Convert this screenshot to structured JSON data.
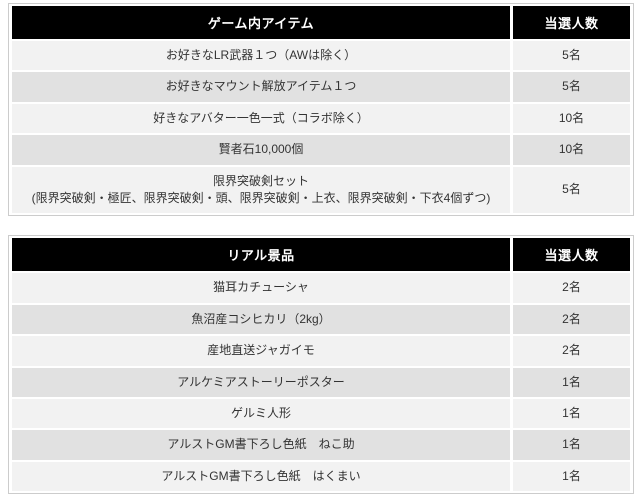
{
  "colors": {
    "header_bg": "#000000",
    "header_text": "#ffffff",
    "row_odd_bg": "#f2f2f2",
    "row_even_bg": "#e1e1e1",
    "cell_text": "#333333",
    "table_border": "#cccccc"
  },
  "table1": {
    "title": "ゲーム内アイテム",
    "count_header": "当選人数",
    "rows": [
      {
        "item": "お好きなLR武器１つ（AWは除く）",
        "winners": "5名"
      },
      {
        "item": "お好きなマウント解放アイテム１つ",
        "winners": "5名"
      },
      {
        "item": "好きなアバター一色一式（コラボ除く）",
        "winners": "10名"
      },
      {
        "item": "賢者石10,000個",
        "winners": "10名"
      },
      {
        "item": "限界突破剣セット\n(限界突破剣・極匠、限界突破剣・頭、限界突破剣・上衣、限界突破剣・下衣4個ずつ)",
        "winners": "5名"
      }
    ]
  },
  "table2": {
    "title": "リアル景品",
    "count_header": "当選人数",
    "rows": [
      {
        "item": "猫耳カチューシャ",
        "winners": "2名"
      },
      {
        "item": "魚沼産コシヒカリ（2kg）",
        "winners": "2名"
      },
      {
        "item": "産地直送ジャガイモ",
        "winners": "2名"
      },
      {
        "item": "アルケミアストーリーポスター",
        "winners": "1名"
      },
      {
        "item": "ゲルミ人形",
        "winners": "1名"
      },
      {
        "item": "アルストGM書下ろし色紙　ねこ助",
        "winners": "1名"
      },
      {
        "item": "アルストGM書下ろし色紙　はくまい",
        "winners": "1名"
      }
    ]
  }
}
